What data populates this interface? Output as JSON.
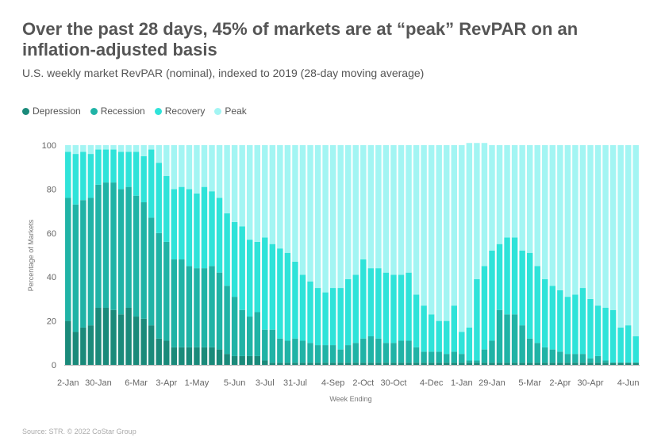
{
  "title": "Over the past 28 days, 45% of markets are at “peak” RevPAR on an inflation-adjusted basis",
  "subtitle": "U.S. weekly market RevPAR (nominal), indexed to 2019 (28-day moving average)",
  "source": "Source: STR. © 2022 CoStar Group",
  "colors": {
    "Depression": "#1a8a7a",
    "Recession": "#20b3a6",
    "Recovery": "#2fe3d9",
    "Peak": "#a3f5f3"
  },
  "chart_data": {
    "type": "bar",
    "stacked": true,
    "xlabel": "Week Ending",
    "ylabel": "Percentage of Markets",
    "ylim": [
      0,
      100
    ],
    "yticks": [
      0,
      20,
      40,
      60,
      80,
      100
    ],
    "legend_position": "top-left",
    "grid": false,
    "tick_labels": [
      "2-Jan",
      "30-Jan",
      "6-Mar",
      "3-Apr",
      "1-May",
      "5-Jun",
      "3-Jul",
      "31-Jul",
      "4-Sep",
      "2-Oct",
      "30-Oct",
      "4-Dec",
      "1-Jan",
      "29-Jan",
      "5-Mar",
      "2-Apr",
      "30-Apr",
      "4-Jun"
    ],
    "tick_positions": [
      0,
      4,
      9,
      13,
      17,
      22,
      26,
      30,
      35,
      39,
      43,
      48,
      52,
      56,
      61,
      65,
      69,
      74
    ],
    "series": [
      {
        "name": "Depression",
        "values": [
          20,
          15,
          17,
          18,
          26,
          26,
          25,
          23,
          26,
          22,
          21,
          18,
          12,
          11,
          8,
          8,
          8,
          8,
          8,
          8,
          7,
          5,
          4,
          4,
          4,
          4,
          2,
          1,
          1,
          1,
          1,
          1,
          1,
          1,
          1,
          1,
          1,
          1,
          1,
          1,
          1,
          1,
          1,
          1,
          1,
          1,
          1,
          1,
          1,
          1,
          1,
          1,
          1,
          1,
          1,
          1,
          1,
          1,
          1,
          1,
          1,
          1,
          1,
          1,
          1,
          1,
          1,
          1,
          1,
          1,
          1,
          1,
          1,
          1,
          1,
          1
        ]
      },
      {
        "name": "Recession",
        "values": [
          56,
          58,
          58,
          58,
          56,
          57,
          58,
          57,
          55,
          55,
          53,
          49,
          48,
          45,
          40,
          40,
          37,
          36,
          36,
          37,
          35,
          31,
          27,
          21,
          18,
          20,
          14,
          15,
          11,
          10,
          11,
          10,
          9,
          8,
          8,
          8,
          6,
          8,
          9,
          11,
          12,
          11,
          9,
          9,
          10,
          10,
          7,
          5,
          5,
          5,
          4,
          5,
          4,
          1,
          1,
          6,
          10,
          24,
          22,
          22,
          17,
          11,
          9,
          7,
          6,
          5,
          4,
          4,
          4,
          2,
          3,
          1,
          0,
          0,
          0,
          0
        ]
      },
      {
        "name": "Recovery",
        "values": [
          21,
          23,
          22,
          20,
          16,
          15,
          15,
          17,
          16,
          20,
          21,
          31,
          32,
          30,
          32,
          33,
          35,
          34,
          37,
          34,
          34,
          33,
          34,
          38,
          35,
          32,
          42,
          39,
          41,
          40,
          35,
          30,
          28,
          26,
          24,
          26,
          28,
          30,
          31,
          36,
          31,
          32,
          32,
          31,
          30,
          31,
          24,
          21,
          17,
          14,
          15,
          21,
          10,
          15,
          37,
          38,
          41,
          30,
          35,
          35,
          34,
          39,
          35,
          31,
          29,
          28,
          26,
          27,
          30,
          27,
          23,
          24,
          24,
          16,
          17,
          12
        ]
      },
      {
        "name": "Peak",
        "values": [
          3,
          4,
          3,
          4,
          2,
          2,
          2,
          3,
          3,
          3,
          5,
          2,
          8,
          14,
          20,
          19,
          20,
          22,
          19,
          21,
          24,
          31,
          35,
          37,
          43,
          44,
          42,
          45,
          47,
          49,
          53,
          59,
          62,
          65,
          67,
          65,
          65,
          61,
          59,
          52,
          56,
          56,
          58,
          59,
          59,
          58,
          68,
          73,
          77,
          80,
          80,
          73,
          85,
          84,
          62,
          56,
          48,
          45,
          42,
          42,
          48,
          49,
          55,
          61,
          64,
          66,
          69,
          68,
          65,
          70,
          73,
          74,
          75,
          83,
          82,
          87
        ]
      }
    ]
  }
}
